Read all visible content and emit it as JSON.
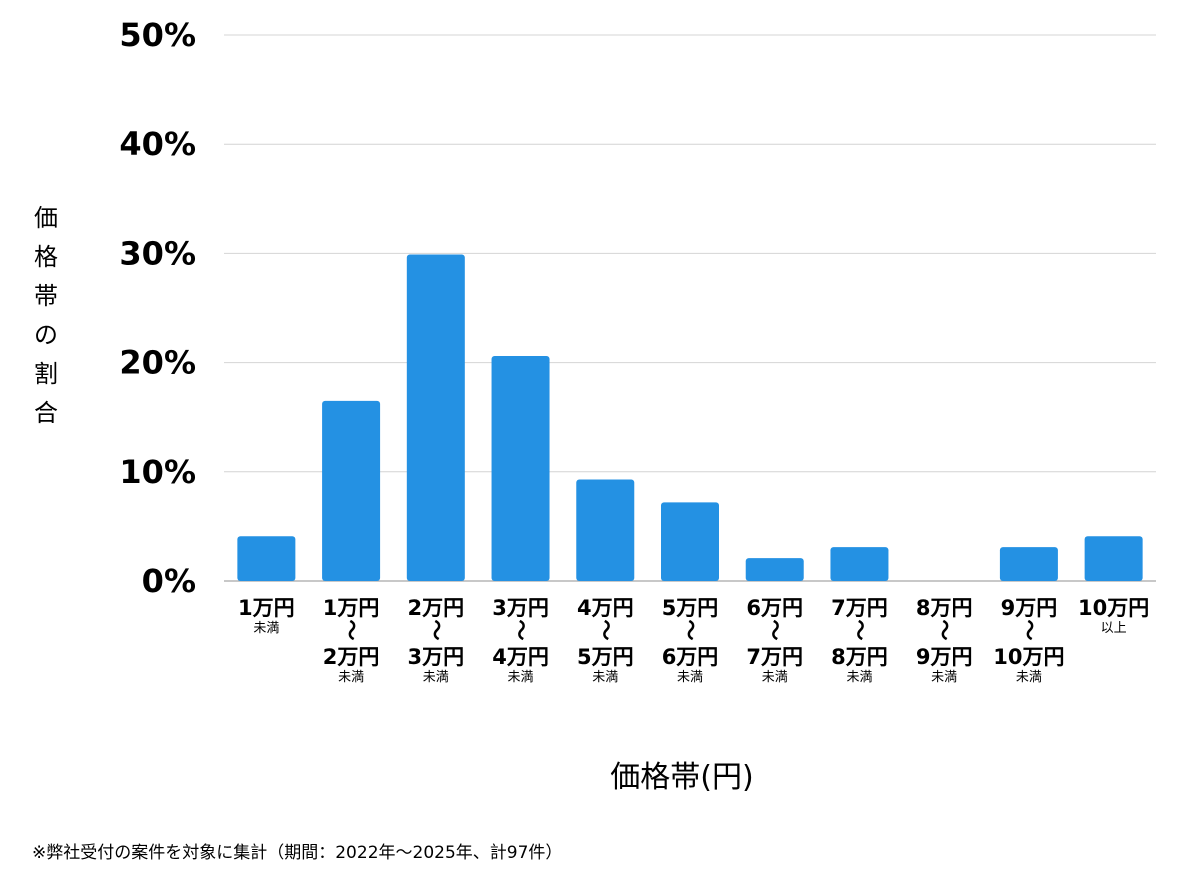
{
  "chart_data": {
    "type": "bar",
    "ylabel": "価格帯の割合",
    "xlabel": "価格帯(円)",
    "ylim": [
      0,
      50
    ],
    "yticks": [
      0,
      10,
      20,
      30,
      40,
      50
    ],
    "ytick_labels": [
      "0%",
      "10%",
      "20%",
      "30%",
      "40%",
      "50%"
    ],
    "grid": true,
    "bar_color": "#2491e3",
    "categories": [
      {
        "lines": [
          {
            "text": "1万円",
            "size": "big"
          },
          {
            "text": "未満",
            "size": "small"
          }
        ]
      },
      {
        "lines": [
          {
            "text": "1万円",
            "size": "big"
          },
          {
            "text": "〜",
            "size": "tilde"
          },
          {
            "text": "2万円",
            "size": "big"
          },
          {
            "text": "未満",
            "size": "small"
          }
        ]
      },
      {
        "lines": [
          {
            "text": "2万円",
            "size": "big"
          },
          {
            "text": "〜",
            "size": "tilde"
          },
          {
            "text": "3万円",
            "size": "big"
          },
          {
            "text": "未満",
            "size": "small"
          }
        ]
      },
      {
        "lines": [
          {
            "text": "3万円",
            "size": "big"
          },
          {
            "text": "〜",
            "size": "tilde"
          },
          {
            "text": "4万円",
            "size": "big"
          },
          {
            "text": "未満",
            "size": "small"
          }
        ]
      },
      {
        "lines": [
          {
            "text": "4万円",
            "size": "big"
          },
          {
            "text": "〜",
            "size": "tilde"
          },
          {
            "text": "5万円",
            "size": "big"
          },
          {
            "text": "未満",
            "size": "small"
          }
        ]
      },
      {
        "lines": [
          {
            "text": "5万円",
            "size": "big"
          },
          {
            "text": "〜",
            "size": "tilde"
          },
          {
            "text": "6万円",
            "size": "big"
          },
          {
            "text": "未満",
            "size": "small"
          }
        ]
      },
      {
        "lines": [
          {
            "text": "6万円",
            "size": "big"
          },
          {
            "text": "〜",
            "size": "tilde"
          },
          {
            "text": "7万円",
            "size": "big"
          },
          {
            "text": "未満",
            "size": "small"
          }
        ]
      },
      {
        "lines": [
          {
            "text": "7万円",
            "size": "big"
          },
          {
            "text": "〜",
            "size": "tilde"
          },
          {
            "text": "8万円",
            "size": "big"
          },
          {
            "text": "未満",
            "size": "small"
          }
        ]
      },
      {
        "lines": [
          {
            "text": "8万円",
            "size": "big"
          },
          {
            "text": "〜",
            "size": "tilde"
          },
          {
            "text": "9万円",
            "size": "big"
          },
          {
            "text": "未満",
            "size": "small"
          }
        ]
      },
      {
        "lines": [
          {
            "text": "9万円",
            "size": "big"
          },
          {
            "text": "〜",
            "size": "tilde"
          },
          {
            "text": "10万円",
            "size": "big"
          },
          {
            "text": "未満",
            "size": "small"
          }
        ]
      },
      {
        "lines": [
          {
            "text": "10万円",
            "size": "big"
          },
          {
            "text": "以上",
            "size": "small"
          }
        ]
      }
    ],
    "values": [
      4.1,
      16.5,
      29.9,
      20.6,
      9.3,
      7.2,
      2.1,
      3.1,
      0,
      3.1,
      4.1
    ]
  },
  "footnote": "※弊社受付の案件を対象に集計（期間：2022年〜2025年、計97件）"
}
